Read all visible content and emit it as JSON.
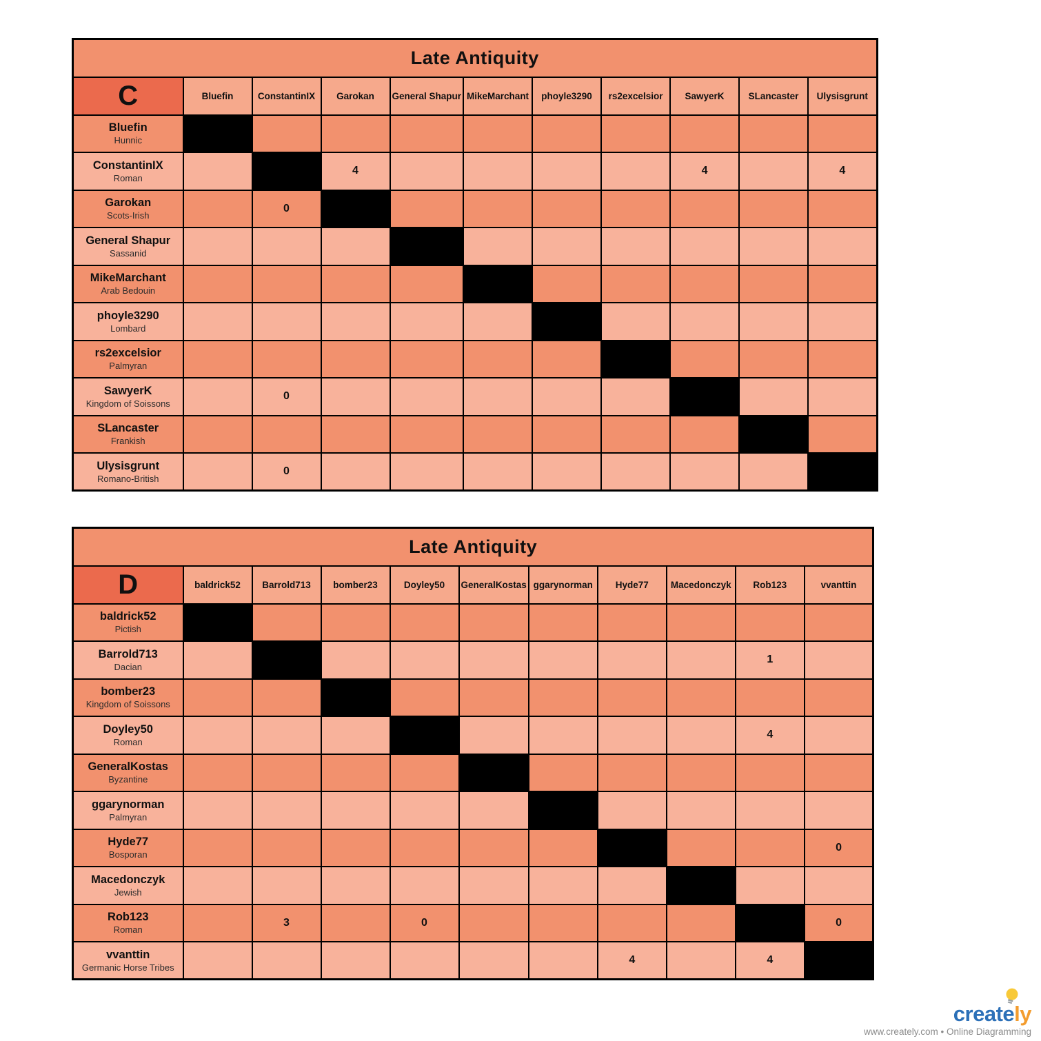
{
  "colors": {
    "corner_bg": "#EB6A4D",
    "row_dark_bg": "#F2916E",
    "row_light_bg": "#F8B29B",
    "column_header_bg": "#F6A98C",
    "grid_line": "#000000",
    "diagonal_cell_bg": "#000000",
    "logo_blue": "#2C70B8",
    "logo_orange": "#F39C2E",
    "bulb_yellow": "#F8C938",
    "bulb_base_gray": "#9AA0A6",
    "tagline_gray": "#8B8B8B"
  },
  "tables": [
    {
      "title": "Late Antiquity",
      "group": "C",
      "columns": [
        "Bluefin",
        "ConstantinIX",
        "Garokan",
        "General Shapur",
        "MikeMarchant",
        "phoyle3290",
        "rs2excelsior",
        "SawyerK",
        "SLancaster",
        "Ulysisgrunt"
      ],
      "rows": [
        {
          "player": "Bluefin",
          "faction": "Hunnic",
          "scores": [
            "",
            "",
            "",
            "",
            "",
            "",
            "",
            "",
            "",
            ""
          ]
        },
        {
          "player": "ConstantinIX",
          "faction": "Roman",
          "scores": [
            "",
            "",
            "4",
            "",
            "",
            "",
            "",
            "4",
            "",
            "4"
          ]
        },
        {
          "player": "Garokan",
          "faction": "Scots-Irish",
          "scores": [
            "",
            "0",
            "",
            "",
            "",
            "",
            "",
            "",
            "",
            ""
          ]
        },
        {
          "player": "General Shapur",
          "faction": "Sassanid",
          "scores": [
            "",
            "",
            "",
            "",
            "",
            "",
            "",
            "",
            "",
            ""
          ]
        },
        {
          "player": "MikeMarchant",
          "faction": "Arab Bedouin",
          "scores": [
            "",
            "",
            "",
            "",
            "",
            "",
            "",
            "",
            "",
            ""
          ]
        },
        {
          "player": "phoyle3290",
          "faction": "Lombard",
          "scores": [
            "",
            "",
            "",
            "",
            "",
            "",
            "",
            "",
            "",
            ""
          ]
        },
        {
          "player": "rs2excelsior",
          "faction": "Palmyran",
          "scores": [
            "",
            "",
            "",
            "",
            "",
            "",
            "",
            "",
            "",
            ""
          ]
        },
        {
          "player": "SawyerK",
          "faction": "Kingdom of Soissons",
          "scores": [
            "",
            "0",
            "",
            "",
            "",
            "",
            "",
            "",
            "",
            ""
          ]
        },
        {
          "player": "SLancaster",
          "faction": "Frankish",
          "scores": [
            "",
            "",
            "",
            "",
            "",
            "",
            "",
            "",
            "",
            ""
          ]
        },
        {
          "player": "Ulysisgrunt",
          "faction": "Romano-British",
          "scores": [
            "",
            "0",
            "",
            "",
            "",
            "",
            "",
            "",
            "",
            ""
          ]
        }
      ]
    },
    {
      "title": "Late Antiquity",
      "group": "D",
      "columns": [
        "baldrick52",
        "Barrold713",
        "bomber23",
        "Doyley50",
        "GeneralKostas",
        "ggarynorman",
        "Hyde77",
        "Macedonczyk",
        "Rob123",
        "vvanttin"
      ],
      "rows": [
        {
          "player": "baldrick52",
          "faction": "Pictish",
          "scores": [
            "",
            "",
            "",
            "",
            "",
            "",
            "",
            "",
            "",
            ""
          ]
        },
        {
          "player": "Barrold713",
          "faction": "Dacian",
          "scores": [
            "",
            "",
            "",
            "",
            "",
            "",
            "",
            "",
            "1",
            ""
          ]
        },
        {
          "player": "bomber23",
          "faction": "Kingdom of Soissons",
          "scores": [
            "",
            "",
            "",
            "",
            "",
            "",
            "",
            "",
            "",
            ""
          ]
        },
        {
          "player": "Doyley50",
          "faction": "Roman",
          "scores": [
            "",
            "",
            "",
            "",
            "",
            "",
            "",
            "",
            "4",
            ""
          ]
        },
        {
          "player": "GeneralKostas",
          "faction": "Byzantine",
          "scores": [
            "",
            "",
            "",
            "",
            "",
            "",
            "",
            "",
            "",
            ""
          ]
        },
        {
          "player": "ggarynorman",
          "faction": "Palmyran",
          "scores": [
            "",
            "",
            "",
            "",
            "",
            "",
            "",
            "",
            "",
            ""
          ]
        },
        {
          "player": "Hyde77",
          "faction": "Bosporan",
          "scores": [
            "",
            "",
            "",
            "",
            "",
            "",
            "",
            "",
            "",
            "0"
          ]
        },
        {
          "player": "Macedonczyk",
          "faction": "Jewish",
          "scores": [
            "",
            "",
            "",
            "",
            "",
            "",
            "",
            "",
            "",
            ""
          ]
        },
        {
          "player": "Rob123",
          "faction": "Roman",
          "scores": [
            "",
            "3",
            "",
            "0",
            "",
            "",
            "",
            "",
            "",
            "0"
          ]
        },
        {
          "player": "vvanttin",
          "faction": "Germanic Horse Tribes",
          "scores": [
            "",
            "",
            "",
            "",
            "",
            "",
            "4",
            "",
            "4",
            ""
          ]
        }
      ]
    }
  ],
  "brand": {
    "wordmark_blue_part": "create",
    "wordmark_orange_part": "ly",
    "tagline": "www.creately.com • Online Diagramming"
  }
}
